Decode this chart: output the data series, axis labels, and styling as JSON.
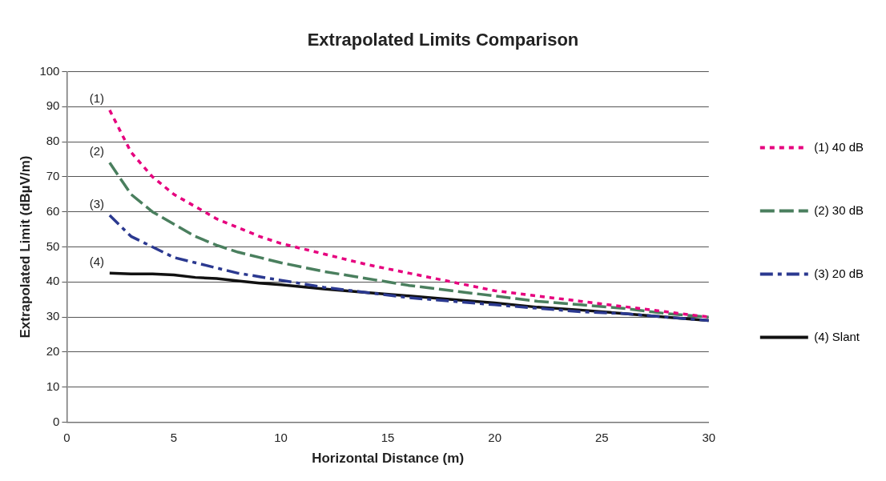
{
  "chart_data": {
    "type": "line",
    "title": "Extrapolated Limits Comparison",
    "xlabel": "Horizontal Distance (m)",
    "ylabel": "Extrapolated Limit (dBµV/m)",
    "x": [
      2,
      3,
      4,
      5,
      6,
      7,
      8,
      9,
      10,
      12,
      14,
      16,
      18,
      20,
      22,
      24,
      26,
      28,
      30
    ],
    "series": [
      {
        "name": "(1) 40 dB",
        "color": "#e6007e",
        "line_style": "dotted",
        "values": [
          89,
          77,
          70,
          65,
          61.5,
          58,
          55.5,
          53,
          51,
          48,
          45,
          42.5,
          40,
          37.5,
          36,
          34.5,
          33,
          31.5,
          30
        ]
      },
      {
        "name": "(2) 30 dB",
        "color": "#4a7f5e",
        "line_style": "dashed",
        "values": [
          74,
          65,
          60,
          56.5,
          53,
          50.5,
          48.5,
          47,
          45.5,
          43,
          41,
          39,
          37.5,
          36,
          34.5,
          33.5,
          32.5,
          31,
          30
        ]
      },
      {
        "name": "(3) 20 dB",
        "color": "#2b3990",
        "line_style": "dashed",
        "values": [
          59,
          53,
          50,
          47,
          45.5,
          44,
          42.5,
          41.5,
          40.5,
          38.5,
          37,
          35.5,
          34.5,
          33.5,
          32.5,
          31.5,
          31,
          30,
          29
        ]
      },
      {
        "name": "(4) Slant",
        "color": "#111111",
        "line_style": "solid",
        "values": [
          42.5,
          42.3,
          42.3,
          42,
          41.3,
          41,
          40.3,
          39.7,
          39.2,
          38,
          37,
          36,
          35,
          34,
          32.8,
          32,
          31,
          30,
          29
        ]
      }
    ],
    "annotations": [
      "(1)",
      "(2)",
      "(3)",
      "(4)"
    ],
    "xlim": [
      0,
      30
    ],
    "xticks": [
      0,
      5,
      10,
      15,
      20,
      25,
      30
    ],
    "ylim": [
      0,
      100
    ],
    "yticks": [
      0,
      10,
      20,
      30,
      40,
      50,
      60,
      70,
      80,
      90,
      100
    ],
    "grid": "y",
    "legend": "right",
    "marker": "none"
  }
}
